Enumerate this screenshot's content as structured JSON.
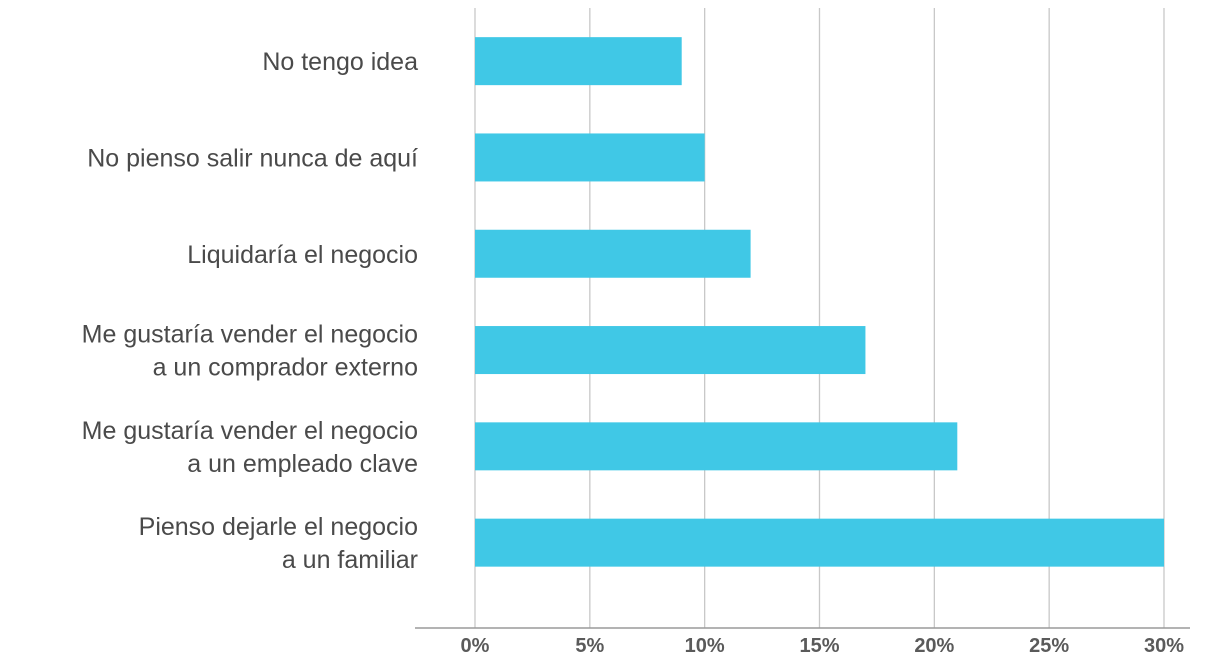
{
  "colors": {
    "bar": "#40C8E6",
    "grid": "#c8c8c8",
    "axis": "#9a9a9a",
    "label": "#4a4a4a",
    "tick": "#5a5a5a"
  },
  "chart_data": {
    "type": "bar",
    "orientation": "horizontal",
    "categories": [
      [
        "No tengo idea"
      ],
      [
        "No pienso salir nunca de aquí"
      ],
      [
        "Liquidaría el negocio"
      ],
      [
        "Me gustaría vender el negocio",
        "a un comprador externo"
      ],
      [
        "Me gustaría vender el negocio",
        "a un empleado clave"
      ],
      [
        "Pienso dejarle el negocio",
        "a un familiar"
      ]
    ],
    "values": [
      9,
      10,
      12,
      17,
      21,
      30
    ],
    "unit": "%",
    "xlim": [
      0,
      30
    ],
    "xticks": [
      "0%",
      "5%",
      "10%",
      "15%",
      "20%",
      "25%",
      "30%"
    ],
    "tick_values": [
      0,
      5,
      10,
      15,
      20,
      25,
      30
    ],
    "grid": true,
    "legend": "none",
    "title": "",
    "xlabel": "",
    "ylabel": ""
  }
}
